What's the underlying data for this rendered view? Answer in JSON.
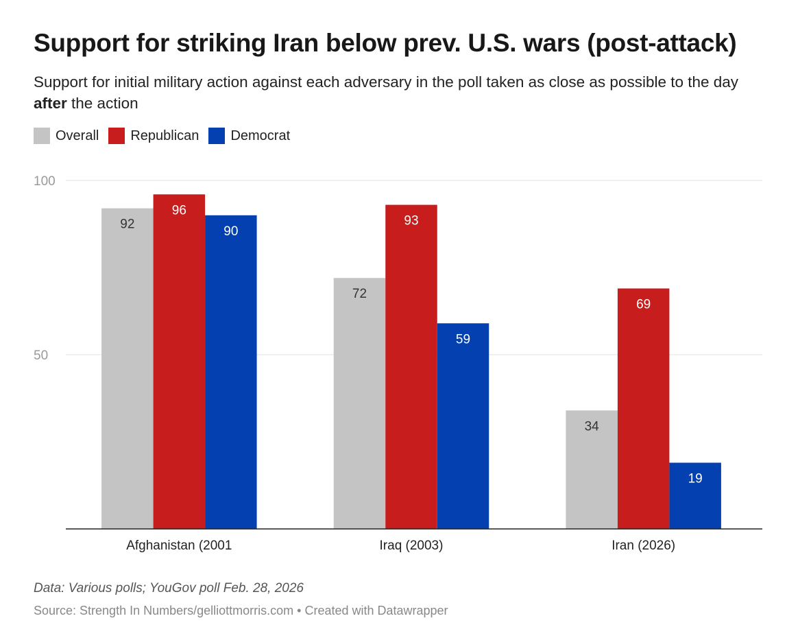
{
  "title": "Support for striking Iran below prev. U.S. wars (post-attack)",
  "subtitle_pre": "Support for initial military action against each adversary in the poll taken as close as possible to the day ",
  "subtitle_bold": "after",
  "subtitle_post": " the action",
  "footer": {
    "data_note": "Data: Various polls; YouGov poll Feb. 28, 2026",
    "source": "Source: Strength In Numbers/gelliottmorris.com • Created with Datawrapper"
  },
  "chart_data": {
    "type": "bar",
    "title": "Support for striking Iran below prev. U.S. wars (post-attack)",
    "xlabel": "",
    "ylabel": "",
    "ylim": [
      0,
      100
    ],
    "yticks": [
      "50",
      "100"
    ],
    "grid": true,
    "legend_position": "top-left",
    "categories": [
      "Afghanistan (2001",
      "Iraq (2003)",
      "Iran (2026)"
    ],
    "series": [
      {
        "name": "Overall",
        "color": "#c4c4c4",
        "label_color": "#333333",
        "values": [
          92,
          72,
          34
        ]
      },
      {
        "name": "Republican",
        "color": "#c71e1d",
        "label_color": "#ffffff",
        "values": [
          96,
          93,
          69
        ]
      },
      {
        "name": "Democrat",
        "color": "#0540b0",
        "label_color": "#ffffff",
        "values": [
          90,
          59,
          19
        ]
      }
    ]
  }
}
